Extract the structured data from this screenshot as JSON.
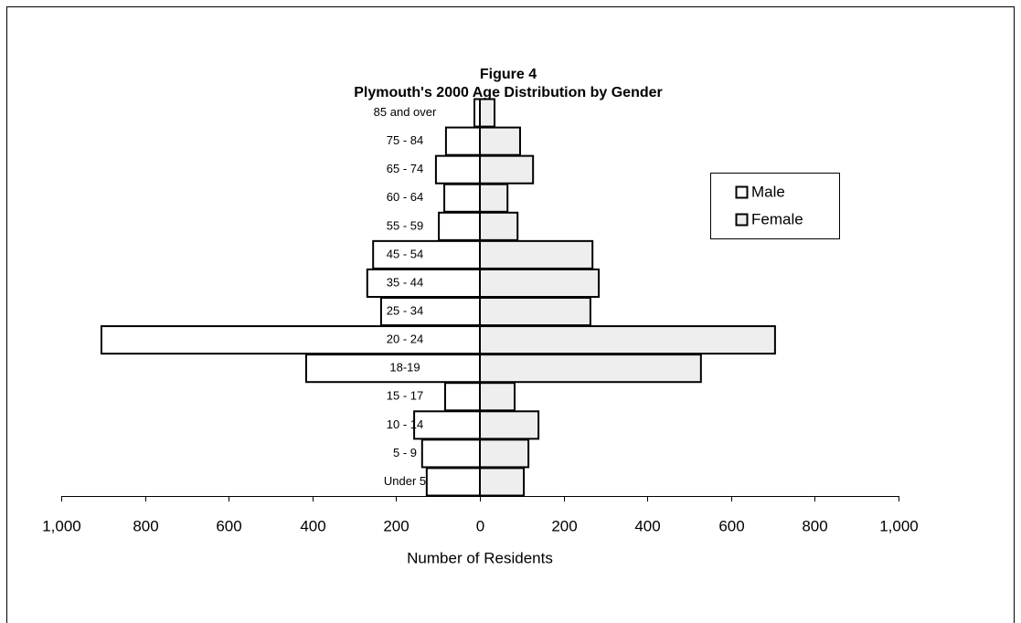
{
  "chart_data": {
    "type": "pyramid",
    "title": "Figure 4",
    "subtitle": "Plymouth's 2000 Age Distribution by Gender",
    "x_label": "Number of Residents",
    "categories": [
      "Under 5",
      "5 - 9",
      "10 - 14",
      "15 - 17",
      "18-19",
      "20 - 24",
      "25 - 34",
      "35 - 44",
      "45 - 54",
      "55 - 59",
      "60 - 64",
      "65 - 74",
      "75 - 84",
      "85 and over"
    ],
    "series": [
      {
        "name": "Male",
        "color": "#ffffff",
        "values": [
          -127,
          -138,
          -157,
          -83,
          -415,
          -904,
          -236,
          -269,
          -255,
          -98,
          -85,
          -105,
          -81,
          -13
        ]
      },
      {
        "name": "Female",
        "color": "#eeeeee",
        "values": [
          105,
          116,
          140,
          83,
          528,
          705,
          264,
          284,
          269,
          90,
          66,
          127,
          96,
          35
        ]
      }
    ],
    "xlim": [
      -1000,
      1000
    ],
    "xticks": [
      {
        "value": -1000,
        "label": "1,000"
      },
      {
        "value": -800,
        "label": "800"
      },
      {
        "value": -600,
        "label": "600"
      },
      {
        "value": -400,
        "label": "400"
      },
      {
        "value": -200,
        "label": "200"
      },
      0,
      200,
      400,
      600,
      800,
      {
        "value": 1000,
        "label": "1,000"
      }
    ],
    "legend": "right"
  }
}
